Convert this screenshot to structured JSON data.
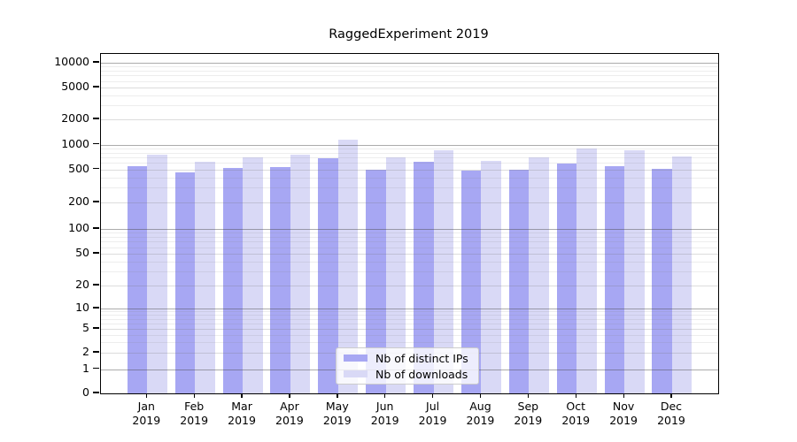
{
  "chart_data": {
    "type": "bar",
    "title": "RaggedExperiment 2019",
    "yscale": "symlog",
    "grid": true,
    "legend_position": "lower center",
    "year_label": "2019",
    "months": [
      "Jan",
      "Feb",
      "Mar",
      "Apr",
      "May",
      "Jun",
      "Jul",
      "Aug",
      "Sep",
      "Oct",
      "Nov",
      "Dec"
    ],
    "yticks": [
      0,
      1,
      2,
      5,
      10,
      20,
      50,
      100,
      200,
      500,
      1000,
      2000,
      5000,
      10000
    ],
    "ylim": [
      0,
      11500
    ],
    "series": [
      {
        "name": "Nb of distinct IPs",
        "color": "#a7a7f3",
        "values": [
          550,
          455,
          515,
          530,
          680,
          500,
          615,
          480,
          490,
          590,
          540,
          505
        ]
      },
      {
        "name": "Nb of downloads",
        "color": "#d9d9f6",
        "values": [
          750,
          620,
          695,
          760,
          1140,
          705,
          855,
          640,
          695,
          890,
          855,
          715
        ]
      }
    ]
  },
  "colors": {
    "spine": "#000000",
    "grid_major": "#ababab",
    "grid_mid": "#dcdcdc",
    "grid_minor": "#ededed",
    "legend_border": "#cccccc"
  }
}
